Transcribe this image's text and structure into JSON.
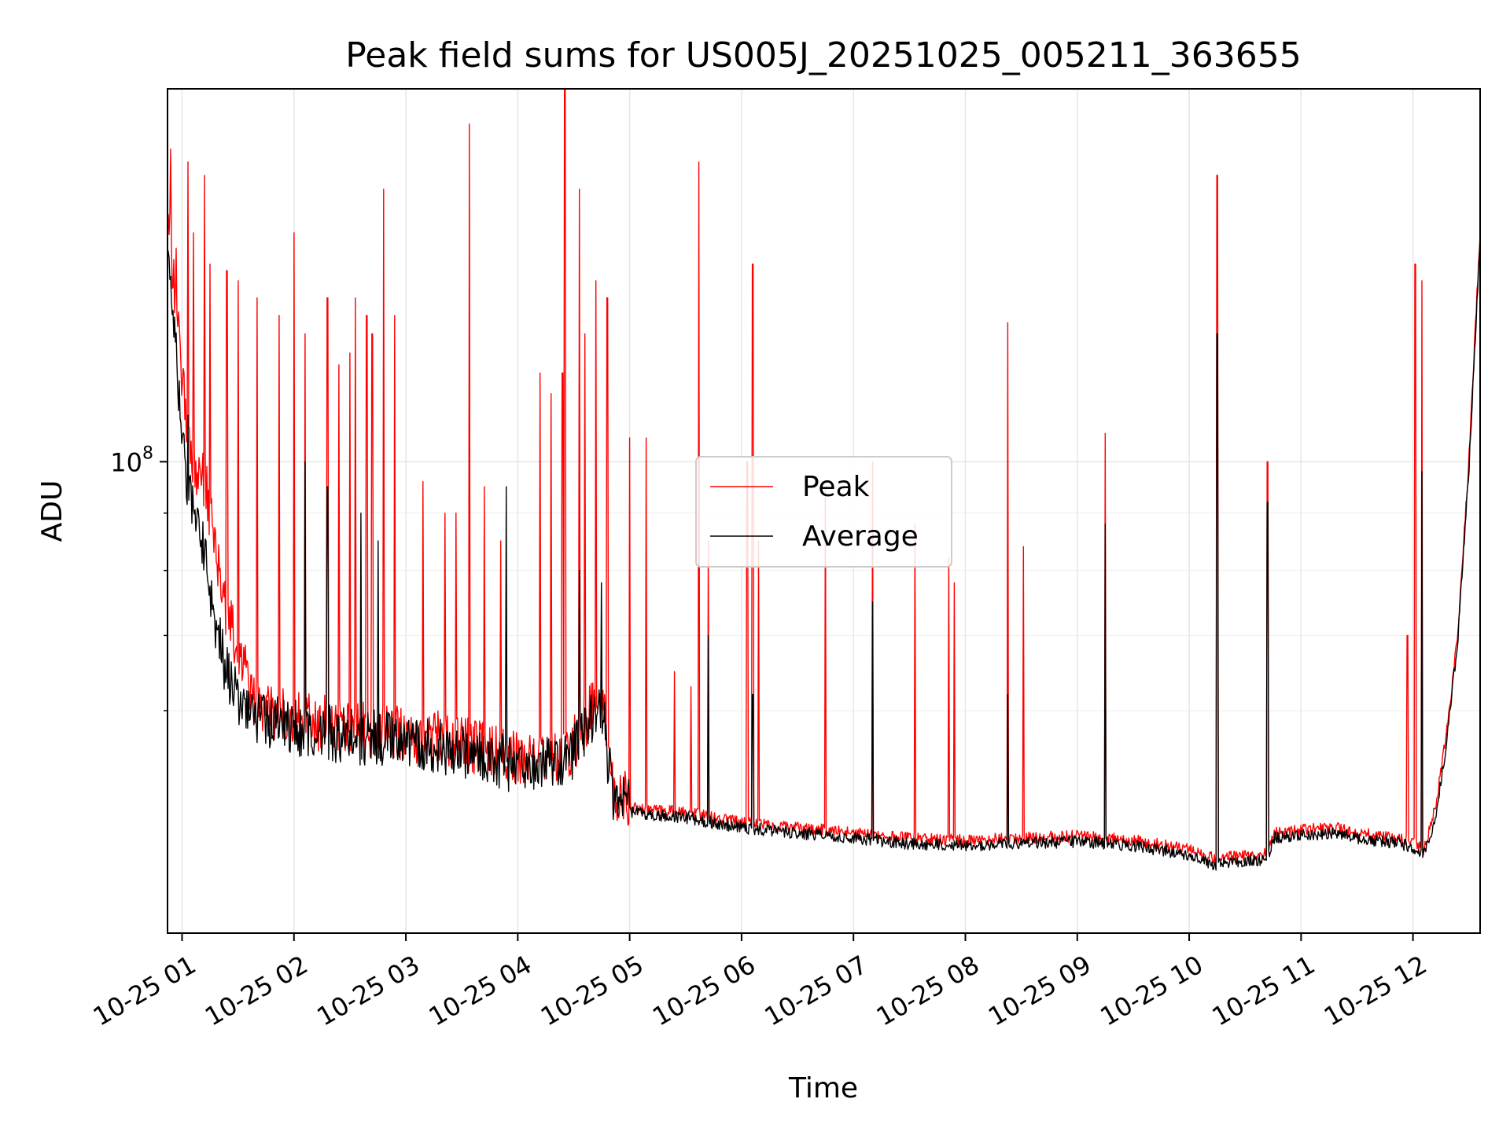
{
  "chart_data": {
    "type": "line",
    "title": "Peak field sums for US005J_20251025_005211_363655",
    "xlabel": "Time",
    "ylabel": "ADU",
    "yscale": "log",
    "ylim": [
      38000000,
      215000000
    ],
    "xlim_hours": [
      0.87,
      12.6
    ],
    "grid": true,
    "legend_position": "center",
    "x_ticks": [
      {
        "hour": 1,
        "label": "10-25 01"
      },
      {
        "hour": 2,
        "label": "10-25 02"
      },
      {
        "hour": 3,
        "label": "10-25 03"
      },
      {
        "hour": 4,
        "label": "10-25 04"
      },
      {
        "hour": 5,
        "label": "10-25 05"
      },
      {
        "hour": 6,
        "label": "10-25 06"
      },
      {
        "hour": 7,
        "label": "10-25 07"
      },
      {
        "hour": 8,
        "label": "10-25 08"
      },
      {
        "hour": 9,
        "label": "10-25 09"
      },
      {
        "hour": 10,
        "label": "10-25 10"
      },
      {
        "hour": 11,
        "label": "10-25 11"
      },
      {
        "hour": 12,
        "label": "10-25 12"
      }
    ],
    "y_major_ticks": [
      {
        "value": 100000000,
        "base": "10",
        "exp": "8"
      }
    ],
    "y_minor_ticks": [
      60000000,
      70000000,
      80000000,
      90000000
    ],
    "series": [
      {
        "name": "Peak",
        "color": "#ff0000",
        "x_hours": [
          0.87,
          0.95,
          1.0,
          1.1,
          1.2,
          1.3,
          1.4,
          1.5,
          1.6,
          1.7,
          1.8,
          2.0,
          2.5,
          3.0,
          3.5,
          3.9,
          4.2,
          4.5,
          4.75,
          4.85,
          5.0,
          5.5,
          6.0,
          6.5,
          7.0,
          7.5,
          8.0,
          8.5,
          9.0,
          9.5,
          10.0,
          10.25,
          10.3,
          10.7,
          10.75,
          11.0,
          11.3,
          11.5,
          11.9,
          12.1,
          12.2,
          12.3,
          12.4,
          12.5,
          12.6
        ],
        "y": [
          165000000,
          135000000,
          115000000,
          98000000,
          95000000,
          82000000,
          72000000,
          67000000,
          62000000,
          59000000,
          58500000,
          58000000,
          57000000,
          56500000,
          55000000,
          54000000,
          53000000,
          55000000,
          62000000,
          50000000,
          49000000,
          48500000,
          47500000,
          47000000,
          46500000,
          46000000,
          45800000,
          46000000,
          46200000,
          45800000,
          45000000,
          44000000,
          44200000,
          44500000,
          46500000,
          46800000,
          47000000,
          46500000,
          46000000,
          45000000,
          49000000,
          57000000,
          70000000,
          100000000,
          160000000
        ],
        "spikes": [
          [
            0.9,
            190000000
          ],
          [
            0.95,
            155000000
          ],
          [
            1.05,
            185000000
          ],
          [
            1.1,
            160000000
          ],
          [
            1.2,
            180000000
          ],
          [
            1.25,
            150000000
          ],
          [
            1.4,
            148000000
          ],
          [
            1.5,
            145000000
          ],
          [
            1.67,
            140000000
          ],
          [
            1.87,
            135000000
          ],
          [
            2.0,
            160000000
          ],
          [
            2.1,
            130000000
          ],
          [
            2.3,
            140000000
          ],
          [
            2.4,
            122000000
          ],
          [
            2.5,
            125000000
          ],
          [
            2.55,
            140000000
          ],
          [
            2.65,
            135000000
          ],
          [
            2.7,
            130000000
          ],
          [
            2.8,
            175000000
          ],
          [
            2.9,
            135000000
          ],
          [
            3.15,
            96000000
          ],
          [
            3.35,
            90000000
          ],
          [
            3.45,
            90000000
          ],
          [
            3.57,
            200000000
          ],
          [
            3.7,
            95000000
          ],
          [
            3.85,
            85000000
          ],
          [
            4.2,
            120000000
          ],
          [
            4.3,
            115000000
          ],
          [
            4.4,
            120000000
          ],
          [
            4.42,
            215000000
          ],
          [
            4.55,
            175000000
          ],
          [
            4.6,
            130000000
          ],
          [
            4.7,
            145000000
          ],
          [
            4.8,
            140000000
          ],
          [
            5.0,
            105000000
          ],
          [
            5.15,
            105000000
          ],
          [
            5.4,
            65000000
          ],
          [
            5.55,
            63000000
          ],
          [
            5.62,
            185000000
          ],
          [
            5.7,
            85000000
          ],
          [
            6.05,
            100000000
          ],
          [
            6.1,
            150000000
          ],
          [
            6.15,
            85000000
          ],
          [
            6.75,
            95000000
          ],
          [
            7.17,
            100000000
          ],
          [
            7.55,
            88000000
          ],
          [
            7.85,
            82000000
          ],
          [
            7.9,
            78000000
          ],
          [
            8.38,
            133000000
          ],
          [
            8.52,
            84000000
          ],
          [
            9.25,
            106000000
          ],
          [
            10.25,
            180000000
          ],
          [
            10.7,
            100000000
          ],
          [
            11.95,
            70000000
          ],
          [
            12.02,
            150000000
          ],
          [
            12.08,
            145000000
          ]
        ]
      },
      {
        "name": "Average",
        "color": "#000000",
        "x_hours": [
          0.87,
          0.95,
          1.0,
          1.1,
          1.2,
          1.3,
          1.4,
          1.5,
          1.6,
          1.7,
          1.8,
          2.0,
          2.5,
          3.0,
          3.5,
          3.9,
          4.2,
          4.5,
          4.75,
          4.85,
          5.0,
          5.5,
          6.0,
          6.5,
          7.0,
          7.5,
          8.0,
          8.5,
          9.0,
          9.5,
          10.0,
          10.25,
          10.3,
          10.7,
          10.75,
          11.0,
          11.3,
          11.5,
          11.9,
          12.1,
          12.2,
          12.3,
          12.4,
          12.5,
          12.6
        ],
        "y": [
          148000000,
          125000000,
          100000000,
          90000000,
          83000000,
          70000000,
          64000000,
          61000000,
          59000000,
          58000000,
          57500000,
          57000000,
          56000000,
          55500000,
          54500000,
          53000000,
          52500000,
          54000000,
          60000000,
          49000000,
          48500000,
          48000000,
          47000000,
          46500000,
          46000000,
          45500000,
          45300000,
          45500000,
          45700000,
          45300000,
          44500000,
          43500000,
          43700000,
          44000000,
          46000000,
          46300000,
          46500000,
          46000000,
          45500000,
          44500000,
          48000000,
          56000000,
          69000000,
          98000000,
          158000000
        ],
        "spikes": [
          [
            1.05,
            110000000
          ],
          [
            2.1,
            100000000
          ],
          [
            2.3,
            95000000
          ],
          [
            2.6,
            90000000
          ],
          [
            2.75,
            85000000
          ],
          [
            3.9,
            95000000
          ],
          [
            4.55,
            80000000
          ],
          [
            4.75,
            78000000
          ],
          [
            5.7,
            70000000
          ],
          [
            6.1,
            62000000
          ],
          [
            7.17,
            75000000
          ],
          [
            8.38,
            62000000
          ],
          [
            9.25,
            88000000
          ],
          [
            10.25,
            130000000
          ],
          [
            10.7,
            92000000
          ],
          [
            12.08,
            98000000
          ]
        ]
      }
    ]
  }
}
